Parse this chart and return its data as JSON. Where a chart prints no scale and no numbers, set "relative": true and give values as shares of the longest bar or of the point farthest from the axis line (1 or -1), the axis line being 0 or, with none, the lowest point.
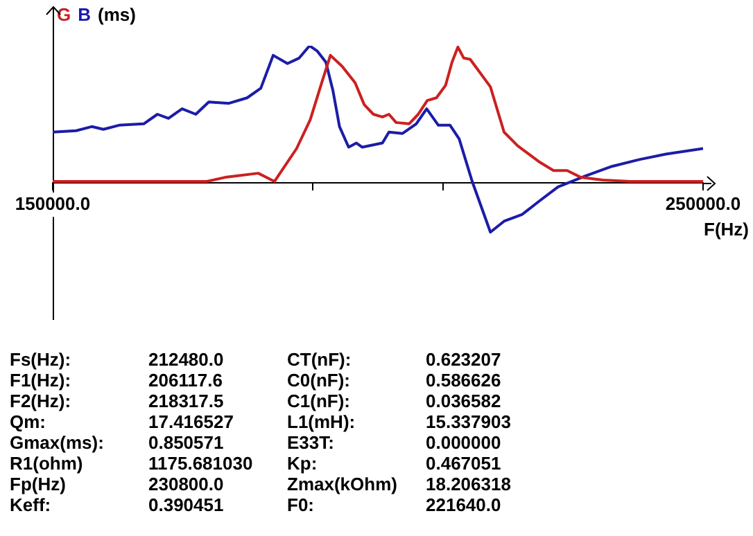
{
  "chart_data": {
    "type": "line",
    "relative": true,
    "ylabel": "(ms)",
    "xlabel": "F(Hz)",
    "legend": "top left",
    "marker": "none",
    "line_style": "solid",
    "grid": false,
    "xlim": [
      150000,
      250000
    ],
    "xticks": [
      {
        "value": 150000,
        "label": "150000.0"
      },
      {
        "value": 190000,
        "label": null
      },
      {
        "value": 210000,
        "label": null
      },
      {
        "value": 250000,
        "label": "250000.0"
      }
    ],
    "series": [
      {
        "name": "G",
        "color": "#cc2020",
        "x": [
          150000,
          169500,
          173700,
          176500,
          181600,
          184100,
          187500,
          189600,
          191300,
          192700,
          194500,
          196500,
          197900,
          199300,
          200700,
          201700,
          202800,
          204800,
          206200,
          207600,
          209000,
          210400,
          211400,
          212300,
          213200,
          214200,
          217300,
          219400,
          221500,
          224900,
          227000,
          229100,
          231200,
          234600,
          238800,
          250000
        ],
        "values": [
          0.01,
          0.01,
          0.01,
          0.04,
          0.07,
          0.01,
          0.25,
          0.46,
          0.72,
          0.93,
          0.85,
          0.73,
          0.57,
          0.5,
          0.48,
          0.5,
          0.44,
          0.43,
          0.5,
          0.6,
          0.62,
          0.71,
          0.88,
          0.99,
          0.91,
          0.9,
          0.7,
          0.37,
          0.27,
          0.15,
          0.09,
          0.09,
          0.04,
          0.02,
          0.01,
          0.01
        ]
      },
      {
        "name": "B",
        "color": "#1c1ca8",
        "x": [
          150000,
          153600,
          156000,
          157800,
          160200,
          164000,
          166100,
          167800,
          169900,
          172000,
          174000,
          177100,
          179900,
          182000,
          183900,
          186100,
          187900,
          189500,
          190700,
          192000,
          193100,
          194100,
          195500,
          196700,
          197600,
          200700,
          201700,
          203800,
          205900,
          207500,
          209300,
          211100,
          212500,
          214500,
          217300,
          219400,
          222200,
          224900,
          227700,
          231900,
          236000,
          240200,
          244300,
          250000
        ],
        "values": [
          0.37,
          0.38,
          0.41,
          0.39,
          0.42,
          0.43,
          0.5,
          0.47,
          0.54,
          0.5,
          0.59,
          0.58,
          0.62,
          0.69,
          0.93,
          0.87,
          0.91,
          1,
          0.96,
          0.88,
          0.67,
          0.41,
          0.26,
          0.29,
          0.26,
          0.29,
          0.37,
          0.36,
          0.43,
          0.54,
          0.42,
          0.42,
          0.32,
          0.01,
          -0.36,
          -0.28,
          -0.23,
          -0.13,
          -0.03,
          0.05,
          0.12,
          0.17,
          0.21,
          0.25
        ]
      }
    ],
    "annotations": [
      "Fs(Hz):",
      "212480.0",
      "CT(nF):",
      "0.623207",
      "F1(Hz):",
      "206117.6",
      "C0(nF):",
      "0.586626",
      "F2(Hz):",
      "218317.5",
      "C1(nF):",
      "0.036582",
      "Qm:",
      "17.416527",
      "L1(mH):",
      "15.337903",
      "Gmax(ms):",
      "0.850571",
      "E33T:",
      "0.000000",
      "R1(ohm)",
      "1175.681030",
      "Kp:",
      "0.467051",
      "Fp(Hz)",
      "230800.0",
      "Zmax(kOhm)",
      "18.206318",
      "Keff:",
      "0.390451",
      "F0:",
      "221640.0"
    ]
  }
}
